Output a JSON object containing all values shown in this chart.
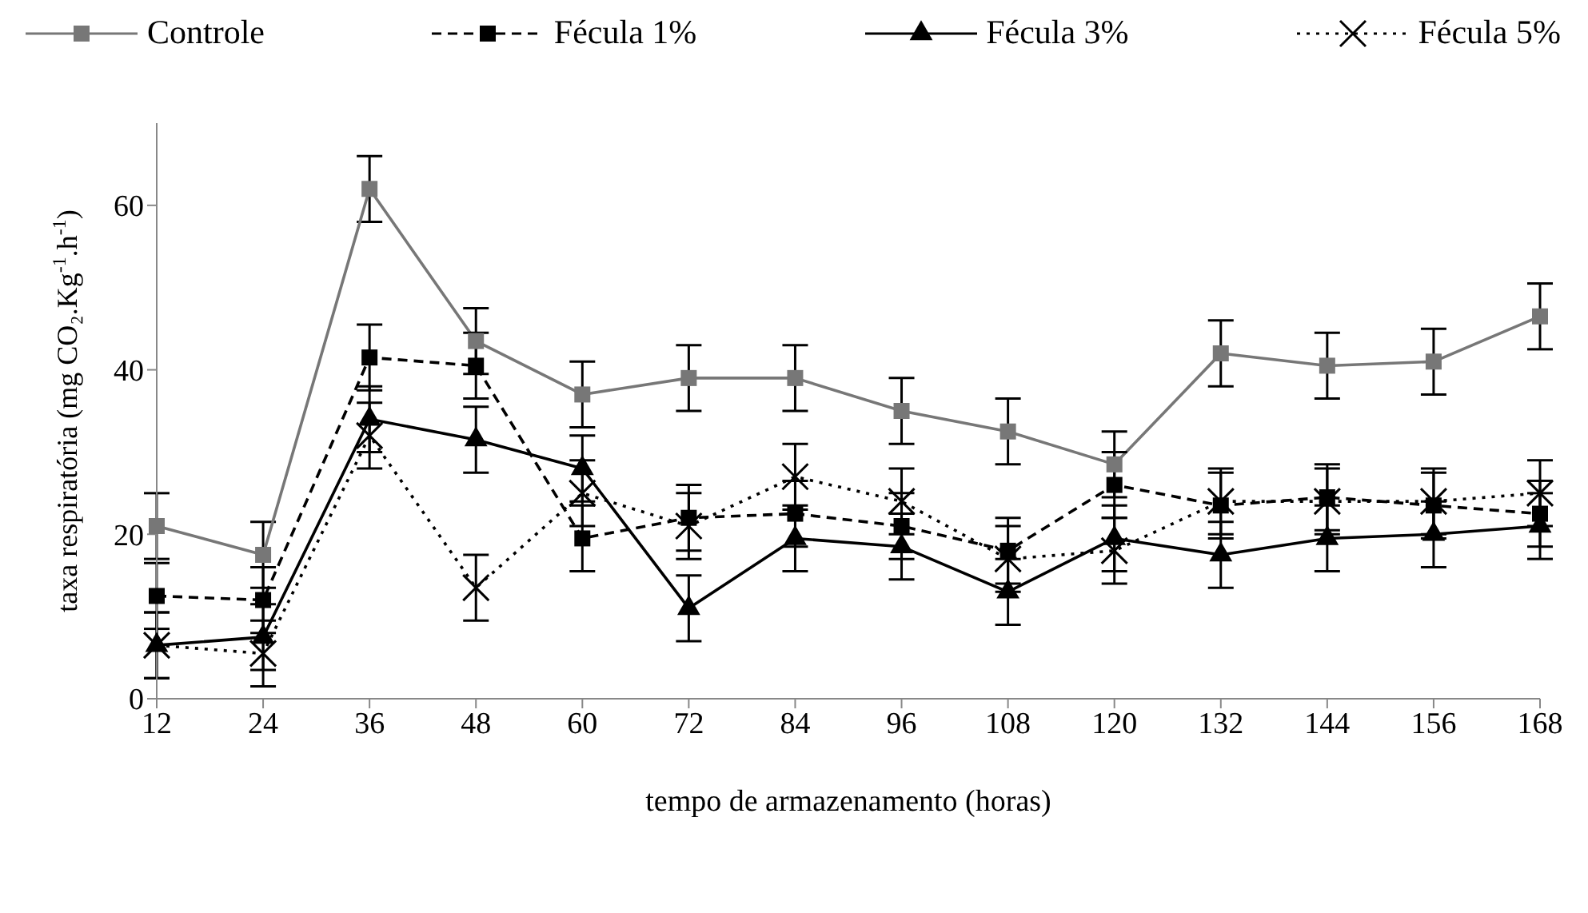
{
  "chart_data": {
    "type": "line",
    "xlabel": "tempo de armazenamento (horas)",
    "ylabel": "taxa respiratória (mg CO₂.Kg$^{-1}$.h$^{-1}$)",
    "categories": [
      "12",
      "24",
      "36",
      "48",
      "60",
      "72",
      "84",
      "96",
      "108",
      "120",
      "132",
      "144",
      "156",
      "168"
    ],
    "ylim": [
      0,
      70
    ],
    "yticks": [
      0,
      20,
      40,
      60
    ],
    "grid": false,
    "legend": "top",
    "series": [
      {
        "name": "Controle",
        "color": "#777777",
        "marker": "square",
        "line_style": "solid",
        "values": [
          21,
          17.5,
          62,
          43.5,
          37,
          39,
          39,
          35,
          32.5,
          28.5,
          42,
          40.5,
          41,
          46.5
        ],
        "errors": [
          4,
          4,
          4,
          4,
          4,
          4,
          4,
          4,
          4,
          4,
          4,
          4,
          4,
          4
        ]
      },
      {
        "name": "Fécula 1%",
        "color": "#000000",
        "marker": "square",
        "line_style": "dashed",
        "values": [
          12.5,
          12,
          41.5,
          40.5,
          19.5,
          22,
          22.5,
          21,
          18,
          26,
          23.5,
          24.5,
          23.5,
          22.5
        ],
        "errors": [
          4,
          4,
          4,
          4,
          4,
          4,
          4,
          4,
          4,
          4,
          4,
          4,
          4,
          4
        ]
      },
      {
        "name": "Fécula 3%",
        "color": "#000000",
        "marker": "triangle",
        "line_style": "solid",
        "values": [
          6.5,
          7.5,
          34,
          31.5,
          28,
          11,
          19.5,
          18.5,
          13,
          19.5,
          17.5,
          19.5,
          20,
          21
        ],
        "errors": [
          4,
          4,
          4,
          4,
          4,
          4,
          4,
          4,
          4,
          4,
          4,
          4,
          4,
          4
        ]
      },
      {
        "name": "Fécula 5%",
        "color": "#000000",
        "marker": "cross",
        "line_style": "dotted",
        "values": [
          6.5,
          5.5,
          32,
          13.5,
          25,
          21,
          27,
          24,
          17,
          18,
          24,
          24,
          24,
          25
        ],
        "errors": [
          4,
          4,
          4,
          4,
          4,
          4,
          4,
          4,
          4,
          4,
          4,
          4,
          4,
          4
        ]
      }
    ]
  }
}
